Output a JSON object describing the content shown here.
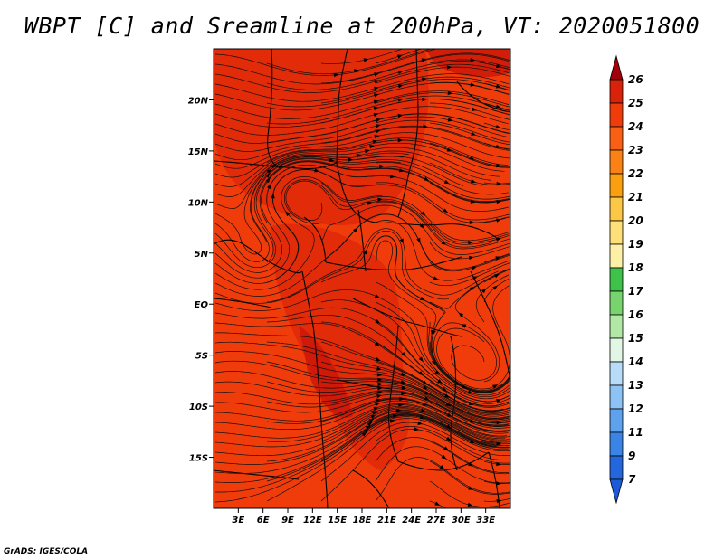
{
  "title": "WBPT [C] and Sreamline at 200hPa, VT: 2020051800",
  "credit": "GrADS: IGES/COLA",
  "map": {
    "lon_range": [
      0,
      36
    ],
    "lat_range": [
      -20,
      25
    ],
    "lat_ticks": [
      "20N",
      "15N",
      "10N",
      "5N",
      "EQ",
      "5S",
      "10S",
      "15S"
    ],
    "lat_tick_values": [
      20,
      15,
      10,
      5,
      0,
      -5,
      -10,
      -15
    ],
    "lon_ticks": [
      "3E",
      "6E",
      "9E",
      "12E",
      "15E",
      "18E",
      "21E",
      "24E",
      "27E",
      "30E",
      "33E"
    ],
    "lon_tick_values": [
      3,
      6,
      9,
      12,
      15,
      18,
      21,
      24,
      27,
      30,
      33
    ],
    "base_color": "#f03c0a",
    "warm_color": "#dc260a",
    "hot_color": "#c8140a"
  },
  "colorbar": {
    "levels": [
      "26",
      "25",
      "24",
      "23",
      "22",
      "21",
      "20",
      "19",
      "18",
      "17",
      "16",
      "15",
      "14",
      "13",
      "12",
      "11",
      "9",
      "7"
    ],
    "colors": [
      "#c0110a",
      "#d8220a",
      "#f03c0a",
      "#fa6014",
      "#fa8214",
      "#faa010",
      "#fcc646",
      "#fde07a",
      "#fff0a8",
      "#3fc24a",
      "#78d46e",
      "#b2e8a6",
      "#e2f6e6",
      "#b8dcf8",
      "#8cc2f4",
      "#5ea2ee",
      "#3a84e6",
      "#2466dc"
    ],
    "top_arrow_color": "#a0000a",
    "bottom_arrow_color": "#1c5ad8"
  }
}
